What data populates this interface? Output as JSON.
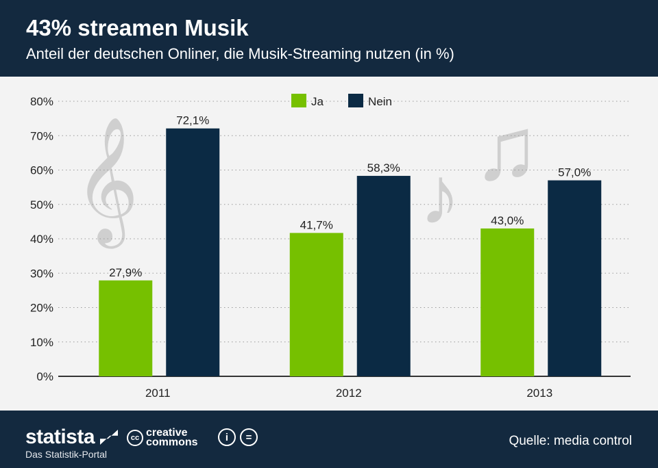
{
  "header": {
    "title": "43% streamen Musik",
    "subtitle": "Anteil der deutschen Onliner, die Musik-Streaming nutzen (in %)"
  },
  "footer": {
    "brand": "statista",
    "brand_sub": "Das Statistik-Portal",
    "cc_text_1": "creative",
    "cc_text_2": "commons",
    "cc_badge": "cc",
    "source": "Quelle: media control"
  },
  "chart_data": {
    "type": "bar",
    "title": "43% streamen Musik",
    "categories": [
      "2011",
      "2012",
      "2013"
    ],
    "series": [
      {
        "name": "Ja",
        "color": "#76c000",
        "values": [
          27.9,
          41.7,
          43.0
        ],
        "labels": [
          "27,9%",
          "41,7%",
          "43,0%"
        ]
      },
      {
        "name": "Nein",
        "color": "#0b2a44",
        "values": [
          72.1,
          58.3,
          57.0
        ],
        "labels": [
          "72,1%",
          "58,3%",
          "57,0%"
        ]
      }
    ],
    "ylim": [
      0,
      80
    ],
    "yticks": [
      0,
      10,
      20,
      30,
      40,
      50,
      60,
      70,
      80
    ],
    "ytick_labels": [
      "0%",
      "10%",
      "20%",
      "30%",
      "40%",
      "50%",
      "60%",
      "70%",
      "80%"
    ],
    "grid": true,
    "legend": "top-center",
    "xlabel": "",
    "ylabel": ""
  }
}
